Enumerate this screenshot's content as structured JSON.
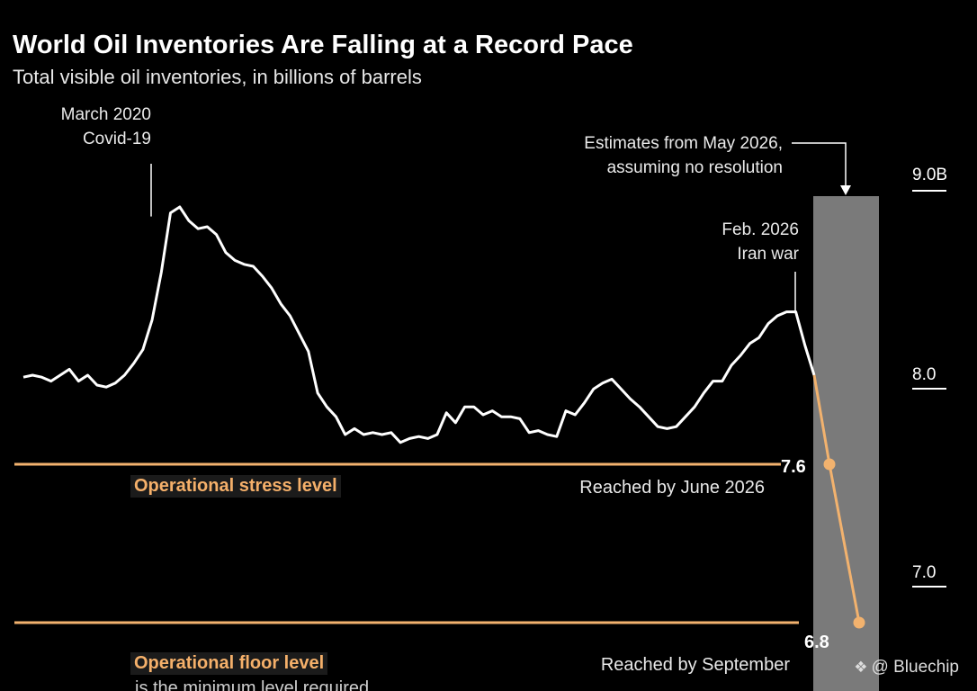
{
  "chart_data": {
    "type": "line",
    "title": "World Oil Inventories Are Falling at a Record Pace",
    "subtitle": "Total visible oil inventories, in billions of barrels",
    "ylim": [
      6.6,
      9.2
    ],
    "yticks": [
      {
        "value": 9.0,
        "label": "9.0B"
      },
      {
        "value": 8.0,
        "label": "8.0"
      },
      {
        "value": 7.0,
        "label": "7.0"
      }
    ],
    "series": [
      {
        "values": [
          8.04,
          8.05,
          8.04,
          8.02,
          8.05,
          8.08,
          8.02,
          8.05,
          8.0,
          7.99,
          8.01,
          8.05,
          8.11,
          8.18,
          8.33,
          8.57,
          8.87,
          8.9,
          8.83,
          8.79,
          8.8,
          8.76,
          8.67,
          8.63,
          8.61,
          8.6,
          8.55,
          8.49,
          8.41,
          8.35,
          8.26,
          8.17,
          7.96,
          7.89,
          7.84,
          7.75,
          7.78,
          7.75,
          7.76,
          7.75,
          7.76,
          7.71,
          7.73,
          7.74,
          7.73,
          7.75,
          7.86,
          7.81,
          7.89,
          7.89,
          7.85,
          7.87,
          7.84,
          7.84,
          7.83,
          7.76,
          7.77,
          7.75,
          7.74,
          7.87,
          7.85,
          7.91,
          7.98,
          8.01,
          8.03,
          7.98,
          7.93,
          7.89,
          7.84,
          7.79,
          7.78,
          7.79,
          7.84,
          7.89,
          7.96,
          8.02,
          8.02,
          8.1,
          8.15,
          8.21,
          8.24,
          8.31,
          8.35,
          8.37,
          8.37,
          8.2,
          8.05
        ]
      },
      {
        "name": "Estimates from May 2026",
        "values": [
          8.05,
          7.6,
          6.8
        ]
      }
    ],
    "levels": [
      {
        "value": 7.6,
        "value_label": "7.6",
        "label": "Operational stress level",
        "note": "Reached by June 2026"
      },
      {
        "value": 6.8,
        "value_label": "6.8",
        "label": "Operational floor level",
        "note": "Reached by September"
      }
    ],
    "annotations": [
      {
        "lines": [
          "March 2020",
          "Covid-19"
        ]
      },
      {
        "lines": [
          "Feb. 2026",
          "Iran war"
        ]
      },
      {
        "lines": [
          "Estimates from May 2026,",
          "assuming no resolution"
        ]
      }
    ],
    "colors": {
      "line": "#ffffff",
      "estimate": "#f2b26e",
      "level": "#f2b26e",
      "band": "#7a7a7a"
    },
    "cut_text": "is the minimum level required"
  },
  "watermark": {
    "icon": "binance-diamond-icon",
    "text": "@ Bluechip"
  }
}
